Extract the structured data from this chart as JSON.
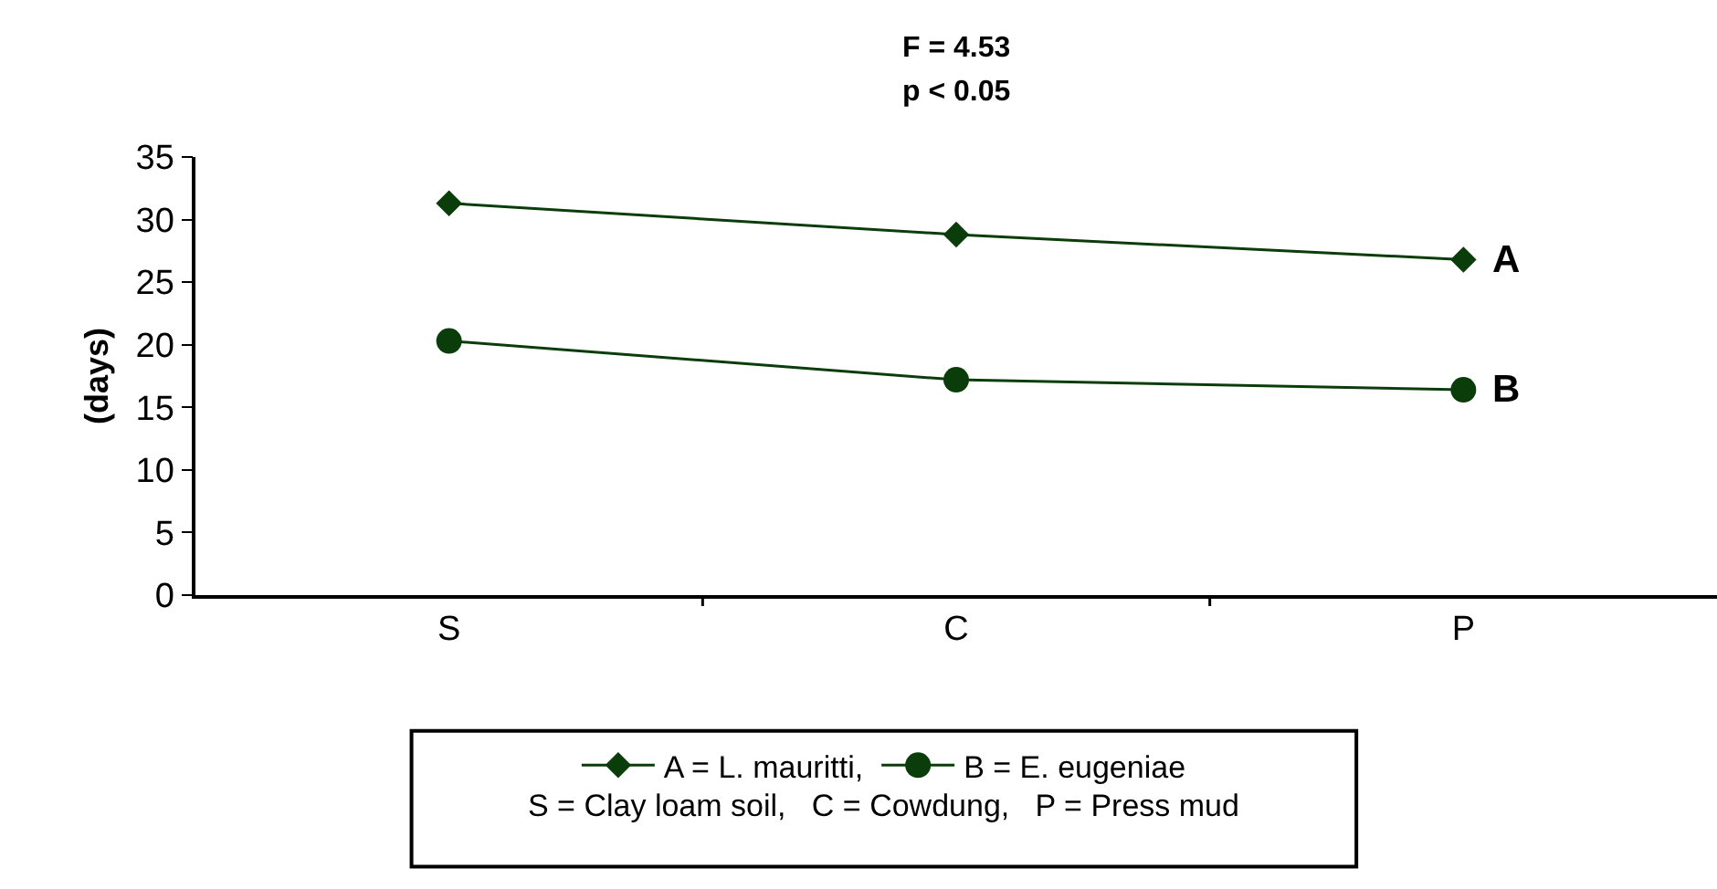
{
  "chart_data": {
    "type": "line",
    "ylabel": "(days)",
    "categories": [
      "S",
      "C",
      "P"
    ],
    "series": [
      {
        "name": "A = L. mauritti,",
        "color": "#0b3d0b",
        "marker": "diamond",
        "values": [
          31.3,
          28.8,
          26.8
        ]
      },
      {
        "name": "B = E. eugeniae",
        "color": "#0b3d0b",
        "marker": "circle",
        "values": [
          20.3,
          17.2,
          16.4
        ]
      }
    ],
    "ylim": [
      0,
      35
    ],
    "yticks": [
      0,
      5,
      10,
      15,
      20,
      25,
      30,
      35
    ],
    "grid": false,
    "legend": "bottom",
    "annotations": [
      {
        "text": "A",
        "x": "P",
        "y": 26.8
      },
      {
        "text": "B",
        "x": "P",
        "y": 16.4
      },
      "F = 4.53",
      "p < 0.05",
      "S = Clay loam soil,   C = Cowdung,   P = Press mud"
    ]
  }
}
